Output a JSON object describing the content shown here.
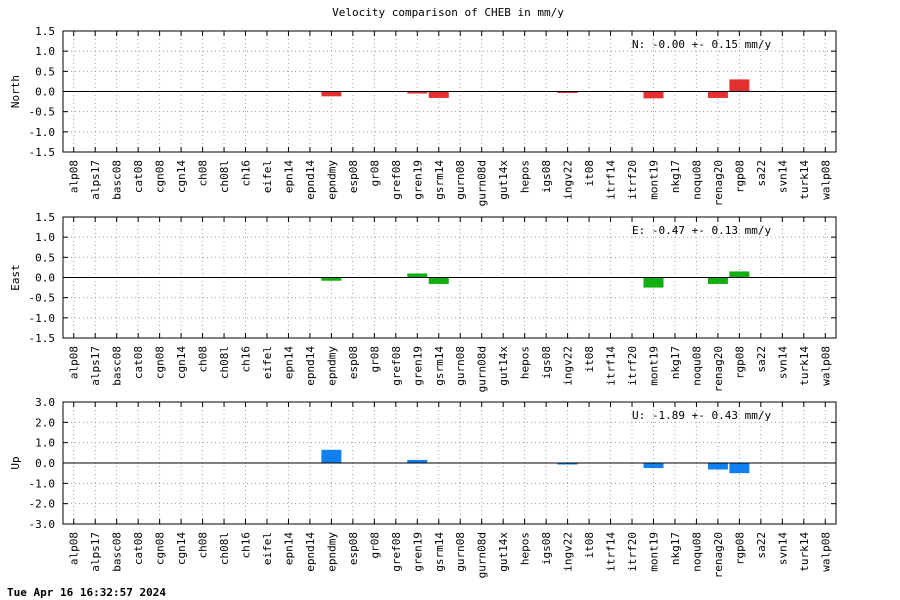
{
  "title": "Velocity comparison of CHEB in mm/y",
  "footer_timestamp": "Tue Apr 16 16:32:57 2024",
  "chart_data": [
    {
      "type": "bar",
      "ylabel": "North",
      "ylim": [
        -1.5,
        1.5
      ],
      "yticks": [
        "-1.5",
        "-1.0",
        "-0.5",
        "0.0",
        "0.5",
        "1.0",
        "1.5"
      ],
      "grid": true,
      "color": "#e53030",
      "annotation": "N:  -0.00 +-  0.15 mm/y",
      "categories": [
        "alp08",
        "alps17",
        "basc08",
        "cat08",
        "cgn08",
        "cgn14",
        "ch08",
        "ch08l",
        "ch16",
        "eifel",
        "epn14",
        "epnd14",
        "epndmy",
        "esp08",
        "gr08",
        "gref08",
        "gren19",
        "gsrm14",
        "gurn08",
        "gurn08d",
        "gut14x",
        "hepos",
        "igs08",
        "ingv22",
        "it08",
        "itrf14",
        "itrf20",
        "mont19",
        "nkg17",
        "noqu08",
        "renag20",
        "rgp08",
        "sa22",
        "svn14",
        "turk14",
        "walp08"
      ],
      "values": [
        0,
        0,
        0,
        0,
        0,
        0,
        0,
        0,
        0,
        0,
        0,
        0,
        -0.12,
        0,
        0,
        0,
        -0.05,
        -0.16,
        0,
        0,
        0,
        0,
        0,
        -0.02,
        0,
        0,
        0,
        -0.17,
        0,
        0,
        -0.16,
        0.3,
        0,
        0,
        0,
        0
      ]
    },
    {
      "type": "bar",
      "ylabel": "East",
      "ylim": [
        -1.5,
        1.5
      ],
      "yticks": [
        "-1.5",
        "-1.0",
        "-0.5",
        "0.0",
        "0.5",
        "1.0",
        "1.5"
      ],
      "grid": true,
      "color": "#10b010",
      "annotation": "E:  -0.47 +-  0.13 mm/y",
      "categories": [
        "alp08",
        "alps17",
        "basc08",
        "cat08",
        "cgn08",
        "cgn14",
        "ch08",
        "ch08l",
        "ch16",
        "eifel",
        "epn14",
        "epnd14",
        "epndmy",
        "esp08",
        "gr08",
        "gref08",
        "gren19",
        "gsrm14",
        "gurn08",
        "gurn08d",
        "gut14x",
        "hepos",
        "igs08",
        "ingv22",
        "it08",
        "itrf14",
        "itrf20",
        "mont19",
        "nkg17",
        "noqu08",
        "renag20",
        "rgp08",
        "sa22",
        "svn14",
        "turk14",
        "walp08"
      ],
      "values": [
        0,
        0,
        0,
        0,
        0,
        0,
        0,
        0,
        0,
        0,
        0,
        0,
        -0.08,
        0,
        0,
        0,
        0.1,
        -0.16,
        0,
        0,
        0,
        0,
        0,
        0,
        0,
        0,
        0,
        -0.25,
        0,
        0,
        -0.16,
        0.15,
        0,
        0,
        0,
        0
      ]
    },
    {
      "type": "bar",
      "ylabel": "Up",
      "ylim": [
        -3.0,
        3.0
      ],
      "yticks": [
        "-3.0",
        "-2.0",
        "-1.0",
        "0.0",
        "1.0",
        "2.0",
        "3.0"
      ],
      "grid": true,
      "color": "#1080f0",
      "annotation": "U:  -1.89 +-  0.43 mm/y",
      "categories": [
        "alp08",
        "alps17",
        "basc08",
        "cat08",
        "cgn08",
        "cgn14",
        "ch08",
        "ch08l",
        "ch16",
        "eifel",
        "epn14",
        "epnd14",
        "epndmy",
        "esp08",
        "gr08",
        "gref08",
        "gren19",
        "gsrm14",
        "gurn08",
        "gurn08d",
        "gut14x",
        "hepos",
        "igs08",
        "ingv22",
        "it08",
        "itrf14",
        "itrf20",
        "mont19",
        "nkg17",
        "noqu08",
        "renag20",
        "rgp08",
        "sa22",
        "svn14",
        "turk14",
        "walp08"
      ],
      "values": [
        0,
        0,
        0,
        0,
        0,
        0,
        0,
        0,
        0,
        0,
        0,
        0,
        0.65,
        0,
        0,
        0,
        0.15,
        0,
        0,
        0,
        0,
        0,
        0,
        -0.05,
        0,
        0,
        0,
        -0.25,
        0,
        0,
        -0.32,
        -0.5,
        0,
        0,
        0,
        0
      ]
    }
  ]
}
